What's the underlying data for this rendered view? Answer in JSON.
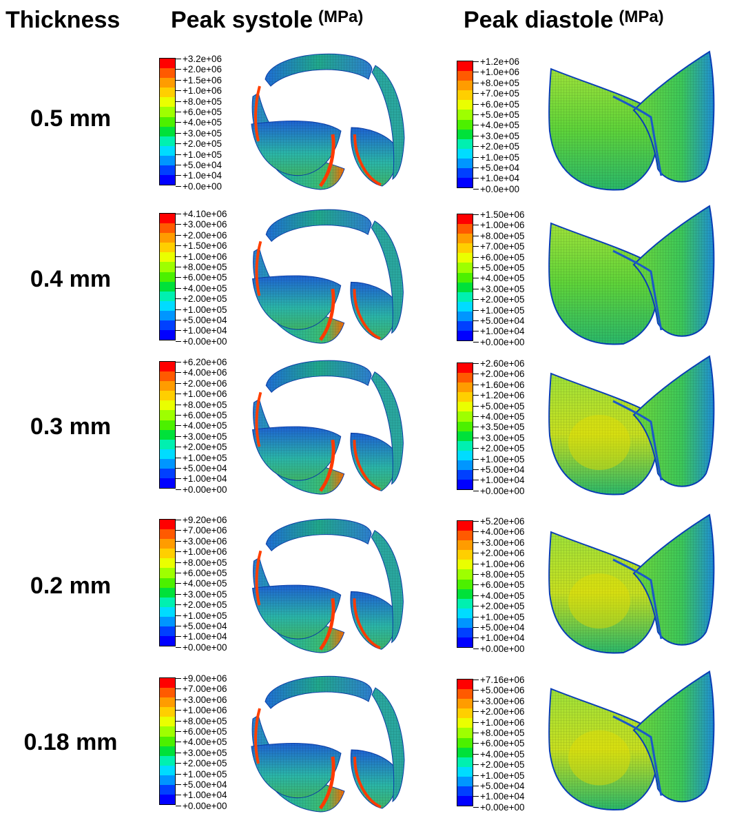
{
  "header": {
    "thickness": "Thickness",
    "systole": "Peak systole",
    "diastole": "Peak diastole",
    "unit": "(MPa)"
  },
  "colors": [
    "#ff0000",
    "#ff5a00",
    "#ff9c00",
    "#ffcf00",
    "#eaff00",
    "#9eff00",
    "#4cf000",
    "#00e13a",
    "#00f0b0",
    "#00dcff",
    "#0096ff",
    "#0040ff",
    "#0000ff"
  ],
  "rows": [
    {
      "thickness": "0.5 mm",
      "systole": [
        "+3.2e+06",
        "+2.0e+06",
        "+1.5e+06",
        "+1.0e+06",
        "+8.0e+05",
        "+6.0e+05",
        "+4.0e+05",
        "+3.0e+05",
        "+2.0e+05",
        "+1.0e+05",
        "+5.0e+04",
        "+1.0e+04",
        "+0.0e+00"
      ],
      "diastole": [
        "+1.2e+06",
        "+1.0e+06",
        "+8.0e+05",
        "+7.0e+05",
        "+6.0e+05",
        "+5.0e+05",
        "+4.0e+05",
        "+3.0e+05",
        "+2.0e+05",
        "+1.0e+05",
        "+5.0e+04",
        "+1.0e+04",
        "+0.0e+00"
      ]
    },
    {
      "thickness": "0.4 mm",
      "systole": [
        "+4.10e+06",
        "+3.00e+06",
        "+2.00e+06",
        "+1.50e+06",
        "+1.00e+06",
        "+8.00e+05",
        "+6.00e+05",
        "+4.00e+05",
        "+2.00e+05",
        "+1.00e+05",
        "+5.00e+04",
        "+1.00e+04",
        "+0.00e+00"
      ],
      "diastole": [
        "+1.50e+06",
        "+1.00e+06",
        "+8.00e+05",
        "+7.00e+05",
        "+6.00e+05",
        "+5.00e+05",
        "+4.00e+05",
        "+3.00e+05",
        "+2.00e+05",
        "+1.00e+05",
        "+5.00e+04",
        "+1.00e+04",
        "+0.00e+00"
      ]
    },
    {
      "thickness": "0.3 mm",
      "systole": [
        "+6.20e+06",
        "+4.00e+06",
        "+2.00e+06",
        "+1.00e+06",
        "+8.00e+05",
        "+6.00e+05",
        "+4.00e+05",
        "+3.00e+05",
        "+2.00e+05",
        "+1.00e+05",
        "+5.00e+04",
        "+1.00e+04",
        "+0.00e+00"
      ],
      "diastole": [
        "+2.60e+06",
        "+2.00e+06",
        "+1.60e+06",
        "+1.20e+06",
        "+5.00e+05",
        "+4.00e+05",
        "+3.50e+05",
        "+3.00e+05",
        "+2.00e+05",
        "+1.00e+05",
        "+5.00e+04",
        "+1.00e+04",
        "+0.00e+00"
      ]
    },
    {
      "thickness": "0.2 mm",
      "systole": [
        "+9.20e+06",
        "+7.00e+06",
        "+3.00e+06",
        "+1.00e+06",
        "+8.00e+05",
        "+6.00e+05",
        "+4.00e+05",
        "+3.00e+05",
        "+2.00e+05",
        "+1.00e+05",
        "+5.00e+04",
        "+1.00e+04",
        "+0.00e+00"
      ],
      "diastole": [
        "+5.20e+06",
        "+4.00e+06",
        "+3.00e+06",
        "+2.00e+06",
        "+1.00e+06",
        "+8.00e+05",
        "+6.00e+05",
        "+4.00e+05",
        "+2.00e+05",
        "+1.00e+05",
        "+5.00e+04",
        "+1.00e+04",
        "+0.00e+00"
      ]
    },
    {
      "thickness": "0.18 mm",
      "systole": [
        "+9.00e+06",
        "+7.00e+06",
        "+3.00e+06",
        "+1.00e+06",
        "+8.00e+05",
        "+6.00e+05",
        "+4.00e+05",
        "+3.00e+05",
        "+2.00e+05",
        "+1.00e+05",
        "+5.00e+04",
        "+1.00e+04",
        "+0.00e+00"
      ],
      "diastole": [
        "+7.16e+06",
        "+5.00e+06",
        "+3.00e+06",
        "+2.00e+06",
        "+1.00e+06",
        "+8.00e+05",
        "+6.00e+05",
        "+4.00e+05",
        "+2.00e+05",
        "+1.00e+05",
        "+5.00e+04",
        "+1.00e+04",
        "+0.00e+00"
      ]
    }
  ]
}
